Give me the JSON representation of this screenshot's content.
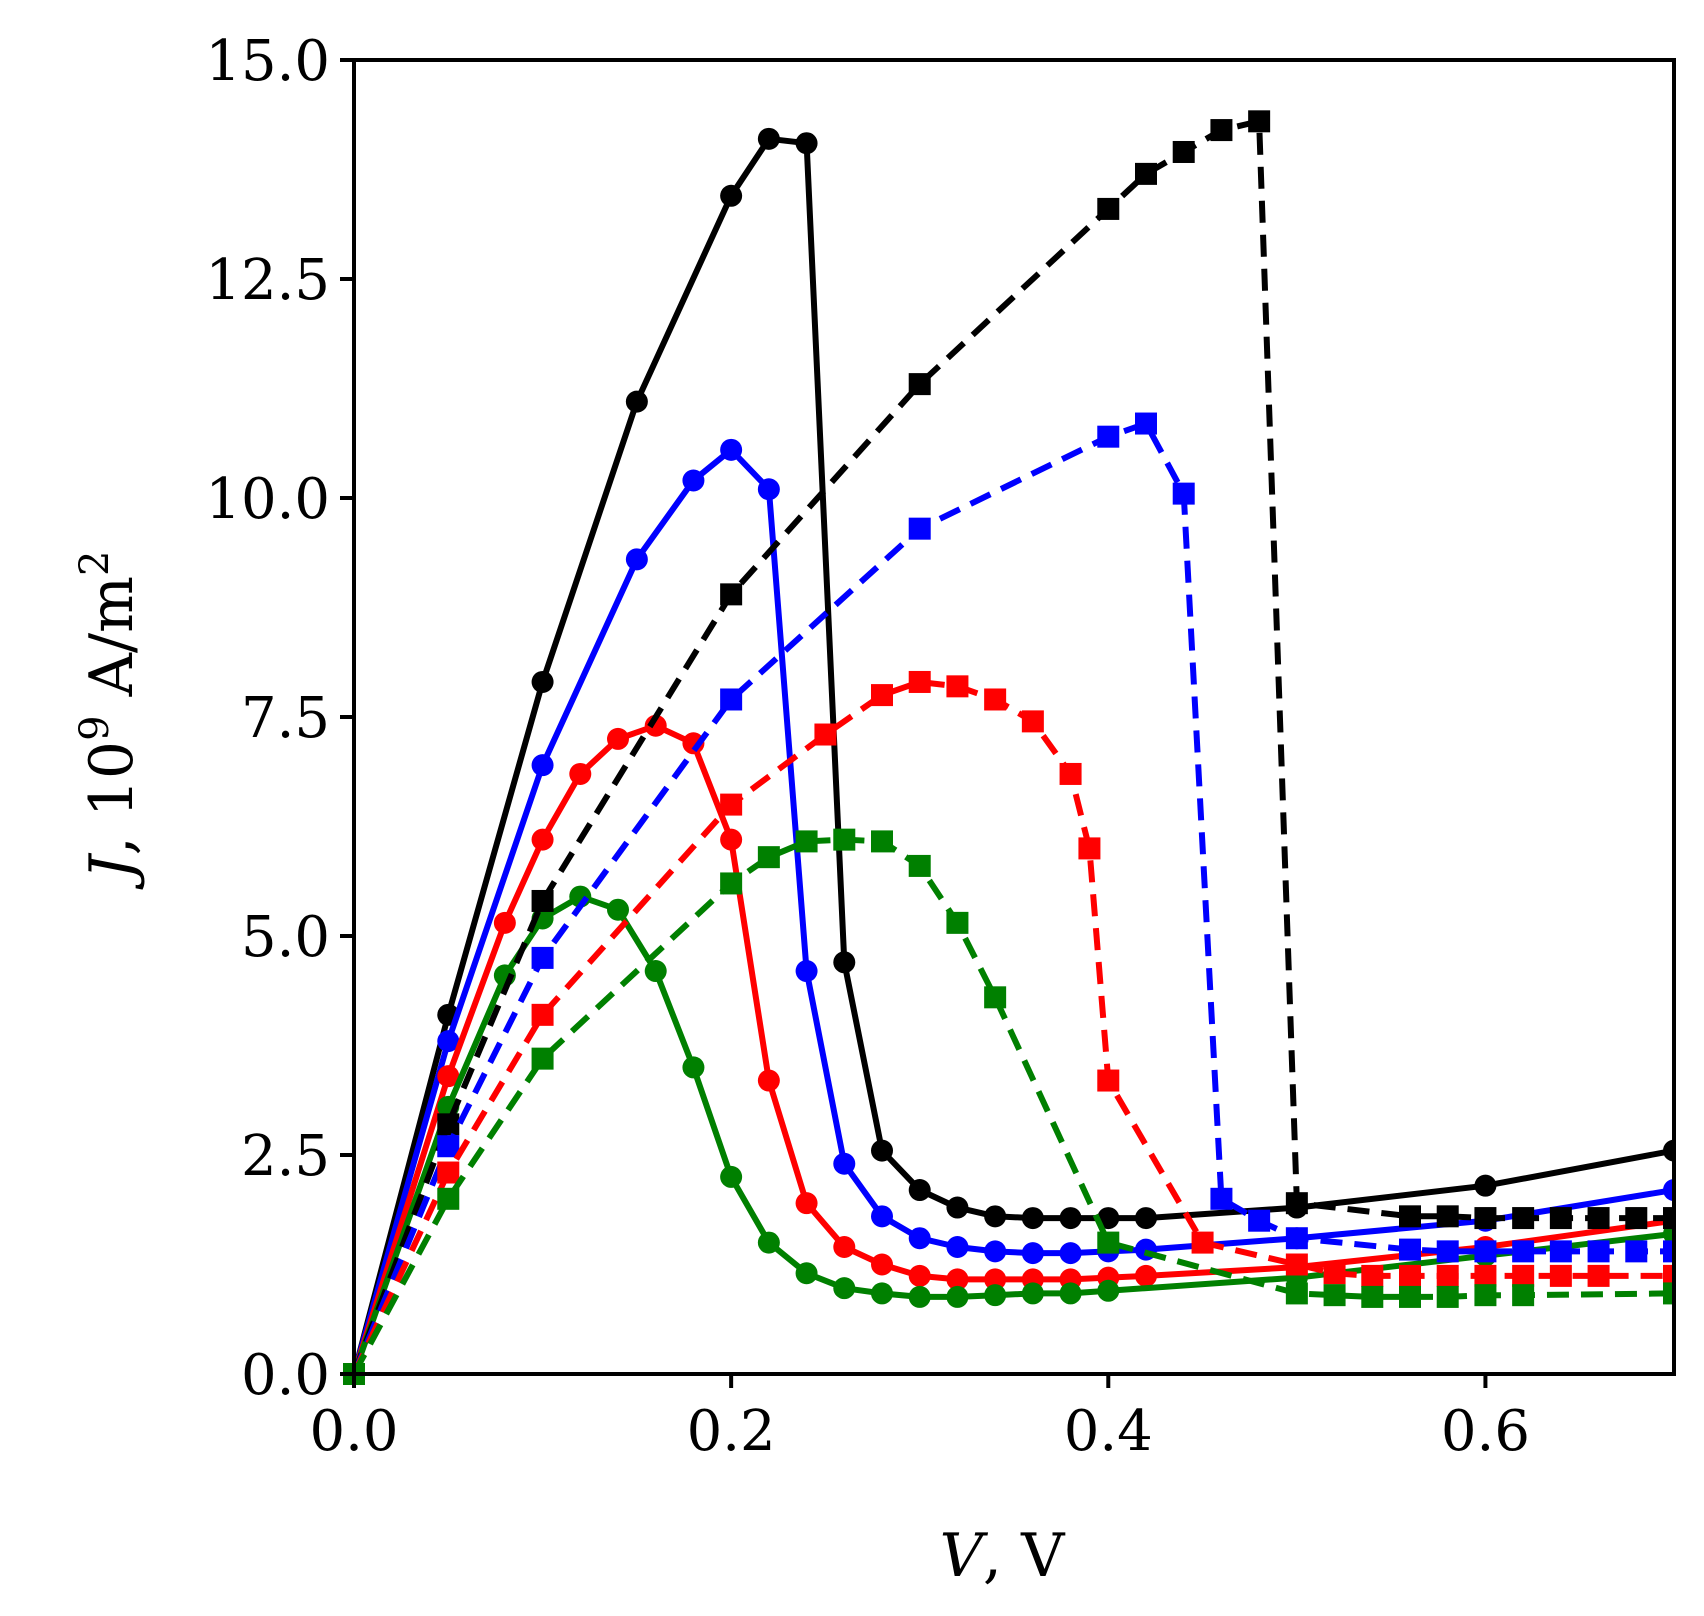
{
  "chart_data": {
    "type": "line",
    "title": "",
    "xlabel": {
      "var": "V",
      "unit": ", V"
    },
    "ylabel": {
      "var": "J",
      "mid": ", 10",
      "exp": "9",
      "unit": " A/m",
      "unit_exp": "2"
    },
    "xlim": [
      0.0,
      0.7
    ],
    "ylim": [
      0.0,
      15.0
    ],
    "grid": false,
    "legend": "none",
    "xticks": [
      {
        "value": 0.0,
        "label": "0.0"
      },
      {
        "value": 0.2,
        "label": "0.2"
      },
      {
        "value": 0.4,
        "label": "0.4"
      },
      {
        "value": 0.6,
        "label": "0.6"
      }
    ],
    "yticks": [
      {
        "value": 0.0,
        "label": "0.0"
      },
      {
        "value": 2.5,
        "label": "2.5"
      },
      {
        "value": 5.0,
        "label": "5.0"
      },
      {
        "value": 7.5,
        "label": "7.5"
      },
      {
        "value": 10.0,
        "label": "10.0"
      },
      {
        "value": 12.5,
        "label": "12.5"
      },
      {
        "value": 15.0,
        "label": "15.0"
      }
    ],
    "series": [
      {
        "name": "black-solid",
        "color": "#000000",
        "dash": "solid",
        "marker": "circle",
        "points": [
          [
            0,
            0
          ],
          [
            0.05,
            4.1
          ],
          [
            0.1,
            7.9
          ],
          [
            0.15,
            11.1
          ],
          [
            0.2,
            13.45
          ],
          [
            0.22,
            14.1
          ],
          [
            0.24,
            14.05
          ],
          [
            0.26,
            4.7
          ],
          [
            0.28,
            2.55
          ],
          [
            0.3,
            2.1
          ],
          [
            0.32,
            1.9
          ],
          [
            0.34,
            1.8
          ],
          [
            0.36,
            1.78
          ],
          [
            0.38,
            1.78
          ],
          [
            0.4,
            1.78
          ],
          [
            0.42,
            1.78
          ],
          [
            0.5,
            1.9
          ],
          [
            0.6,
            2.15
          ],
          [
            0.7,
            2.55
          ]
        ]
      },
      {
        "name": "blue-solid",
        "color": "#0000ff",
        "dash": "solid",
        "marker": "circle",
        "points": [
          [
            0,
            0
          ],
          [
            0.05,
            3.8
          ],
          [
            0.1,
            6.95
          ],
          [
            0.15,
            9.3
          ],
          [
            0.18,
            10.2
          ],
          [
            0.2,
            10.55
          ],
          [
            0.22,
            10.1
          ],
          [
            0.24,
            4.6
          ],
          [
            0.26,
            2.4
          ],
          [
            0.28,
            1.8
          ],
          [
            0.3,
            1.55
          ],
          [
            0.32,
            1.45
          ],
          [
            0.34,
            1.4
          ],
          [
            0.36,
            1.38
          ],
          [
            0.38,
            1.38
          ],
          [
            0.4,
            1.4
          ],
          [
            0.42,
            1.42
          ],
          [
            0.5,
            1.55
          ],
          [
            0.6,
            1.75
          ],
          [
            0.7,
            2.1
          ]
        ]
      },
      {
        "name": "red-solid",
        "color": "#ff0000",
        "dash": "solid",
        "marker": "circle",
        "points": [
          [
            0,
            0
          ],
          [
            0.05,
            3.4
          ],
          [
            0.08,
            5.15
          ],
          [
            0.1,
            6.1
          ],
          [
            0.12,
            6.85
          ],
          [
            0.14,
            7.25
          ],
          [
            0.16,
            7.4
          ],
          [
            0.18,
            7.2
          ],
          [
            0.2,
            6.1
          ],
          [
            0.22,
            3.35
          ],
          [
            0.24,
            1.95
          ],
          [
            0.26,
            1.45
          ],
          [
            0.28,
            1.25
          ],
          [
            0.3,
            1.12
          ],
          [
            0.32,
            1.08
          ],
          [
            0.34,
            1.08
          ],
          [
            0.36,
            1.08
          ],
          [
            0.38,
            1.08
          ],
          [
            0.4,
            1.1
          ],
          [
            0.42,
            1.12
          ],
          [
            0.5,
            1.22
          ],
          [
            0.6,
            1.45
          ],
          [
            0.7,
            1.75
          ]
        ]
      },
      {
        "name": "green-solid",
        "color": "#008000",
        "dash": "solid",
        "marker": "circle",
        "points": [
          [
            0,
            0
          ],
          [
            0.05,
            3.05
          ],
          [
            0.08,
            4.55
          ],
          [
            0.1,
            5.2
          ],
          [
            0.12,
            5.45
          ],
          [
            0.14,
            5.3
          ],
          [
            0.16,
            4.6
          ],
          [
            0.18,
            3.5
          ],
          [
            0.2,
            2.25
          ],
          [
            0.22,
            1.5
          ],
          [
            0.24,
            1.15
          ],
          [
            0.26,
            0.98
          ],
          [
            0.28,
            0.92
          ],
          [
            0.3,
            0.88
          ],
          [
            0.32,
            0.88
          ],
          [
            0.34,
            0.9
          ],
          [
            0.36,
            0.92
          ],
          [
            0.38,
            0.92
          ],
          [
            0.4,
            0.95
          ],
          [
            0.5,
            1.1
          ],
          [
            0.6,
            1.35
          ],
          [
            0.7,
            1.6
          ]
        ]
      },
      {
        "name": "black-dashed",
        "color": "#000000",
        "dash": "dashed",
        "marker": "square",
        "points": [
          [
            0,
            0
          ],
          [
            0.05,
            2.85
          ],
          [
            0.1,
            5.4
          ],
          [
            0.2,
            8.9
          ],
          [
            0.3,
            11.3
          ],
          [
            0.4,
            13.3
          ],
          [
            0.42,
            13.7
          ],
          [
            0.44,
            13.95
          ],
          [
            0.46,
            14.2
          ],
          [
            0.48,
            14.3
          ],
          [
            0.5,
            1.95
          ],
          [
            0.56,
            1.8
          ],
          [
            0.58,
            1.8
          ],
          [
            0.6,
            1.78
          ],
          [
            0.62,
            1.78
          ],
          [
            0.64,
            1.78
          ],
          [
            0.66,
            1.78
          ],
          [
            0.68,
            1.78
          ],
          [
            0.7,
            1.78
          ]
        ]
      },
      {
        "name": "blue-dashed",
        "color": "#0000ff",
        "dash": "dashed",
        "marker": "square",
        "points": [
          [
            0,
            0
          ],
          [
            0.05,
            2.6
          ],
          [
            0.1,
            4.75
          ],
          [
            0.2,
            7.7
          ],
          [
            0.3,
            9.65
          ],
          [
            0.4,
            10.7
          ],
          [
            0.42,
            10.85
          ],
          [
            0.44,
            10.05
          ],
          [
            0.46,
            2.0
          ],
          [
            0.48,
            1.75
          ],
          [
            0.5,
            1.55
          ],
          [
            0.56,
            1.42
          ],
          [
            0.58,
            1.4
          ],
          [
            0.6,
            1.4
          ],
          [
            0.62,
            1.4
          ],
          [
            0.64,
            1.4
          ],
          [
            0.66,
            1.4
          ],
          [
            0.68,
            1.4
          ],
          [
            0.7,
            1.4
          ]
        ]
      },
      {
        "name": "red-dashed",
        "color": "#ff0000",
        "dash": "dashed",
        "marker": "square",
        "points": [
          [
            0,
            0
          ],
          [
            0.05,
            2.3
          ],
          [
            0.1,
            4.1
          ],
          [
            0.2,
            6.5
          ],
          [
            0.25,
            7.3
          ],
          [
            0.28,
            7.75
          ],
          [
            0.3,
            7.9
          ],
          [
            0.32,
            7.85
          ],
          [
            0.34,
            7.7
          ],
          [
            0.36,
            7.45
          ],
          [
            0.38,
            6.85
          ],
          [
            0.39,
            6.0
          ],
          [
            0.4,
            3.35
          ],
          [
            0.45,
            1.5
          ],
          [
            0.5,
            1.25
          ],
          [
            0.52,
            1.15
          ],
          [
            0.54,
            1.12
          ],
          [
            0.56,
            1.12
          ],
          [
            0.58,
            1.12
          ],
          [
            0.6,
            1.12
          ],
          [
            0.62,
            1.12
          ],
          [
            0.64,
            1.12
          ],
          [
            0.66,
            1.12
          ],
          [
            0.7,
            1.12
          ]
        ]
      },
      {
        "name": "green-dashed",
        "color": "#008000",
        "dash": "dashed",
        "marker": "square",
        "points": [
          [
            0,
            0
          ],
          [
            0.05,
            2.0
          ],
          [
            0.1,
            3.6
          ],
          [
            0.2,
            5.6
          ],
          [
            0.22,
            5.9
          ],
          [
            0.24,
            6.08
          ],
          [
            0.26,
            6.1
          ],
          [
            0.28,
            6.08
          ],
          [
            0.3,
            5.8
          ],
          [
            0.32,
            5.15
          ],
          [
            0.34,
            4.3
          ],
          [
            0.4,
            1.5
          ],
          [
            0.5,
            0.92
          ],
          [
            0.52,
            0.9
          ],
          [
            0.54,
            0.88
          ],
          [
            0.56,
            0.88
          ],
          [
            0.58,
            0.88
          ],
          [
            0.6,
            0.9
          ],
          [
            0.62,
            0.9
          ],
          [
            0.7,
            0.92
          ]
        ]
      }
    ]
  }
}
